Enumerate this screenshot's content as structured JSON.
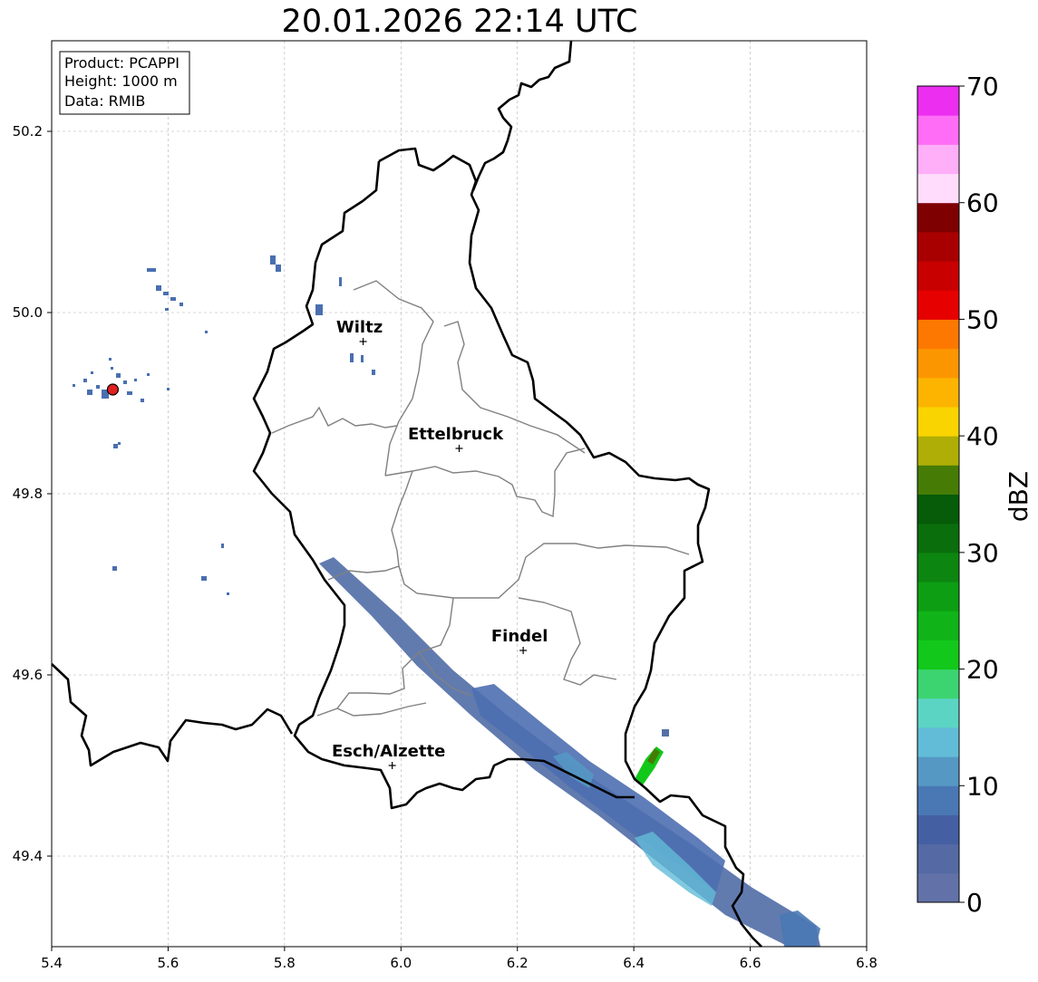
{
  "title": "20.01.2026 22:14 UTC",
  "info_box": {
    "product": "Product: PCAPPI",
    "height": "Height: 1000 m",
    "data": "Data: RMIB"
  },
  "x_ticks": [
    "5.4",
    "5.6",
    "5.8",
    "6.0",
    "6.2",
    "6.4",
    "6.6",
    "6.8"
  ],
  "y_ticks": [
    "50.2",
    "50.0",
    "49.8",
    "49.6",
    "49.4"
  ],
  "cities": [
    {
      "name": "Wiltz",
      "lon": 5.935,
      "lat": 49.968
    },
    {
      "name": "Ettelbruck",
      "lon": 6.1,
      "lat": 49.85
    },
    {
      "name": "Findel",
      "lon": 6.21,
      "lat": 49.627
    },
    {
      "name": "Esch/Alzette",
      "lon": 5.985,
      "lat": 49.5
    }
  ],
  "radar_site": {
    "lon": 5.505,
    "lat": 49.915,
    "color": "#e02020"
  },
  "colorbar": {
    "label": "dBZ",
    "ticks": [
      "0",
      "10",
      "20",
      "30",
      "40",
      "50",
      "60",
      "70"
    ],
    "min": 0,
    "max": 70,
    "colors": [
      "#6272a8",
      "#556aa4",
      "#4560a2",
      "#4a78b4",
      "#5598c4",
      "#62bcd8",
      "#5cd4c4",
      "#3cd470",
      "#12c81a",
      "#10b418",
      "#0e9e14",
      "#0c8610",
      "#0a6e0c",
      "#065c08",
      "#467c06",
      "#aeae06",
      "#fad400",
      "#fcb400",
      "#fc9600",
      "#fc7800",
      "#e60000",
      "#c80000",
      "#a80000",
      "#7e0000",
      "#ffdcfc",
      "#ffaef8",
      "#ff6cf6",
      "#ec2ef0"
    ]
  },
  "axis": {
    "lon_min": 5.4,
    "lon_max": 6.8,
    "lat_min": 49.3,
    "lat_max": 50.3
  }
}
